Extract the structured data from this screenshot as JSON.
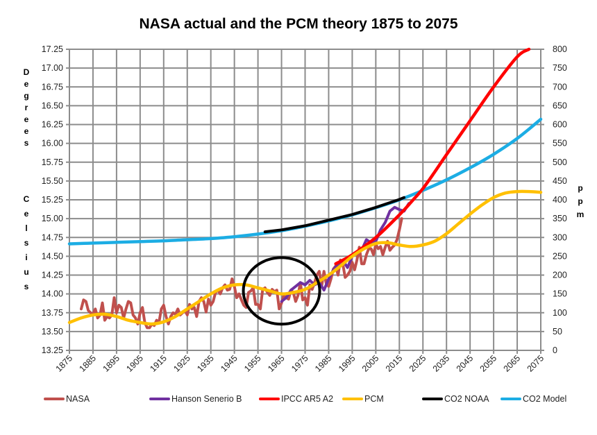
{
  "chart_data": {
    "type": "line",
    "title": "NASA actual and the PCM theory 1875 to 2075",
    "xlabel": "",
    "ylabel_left": "Degrees Celsius",
    "ylabel_right": "ppm",
    "xlim": [
      1875,
      2075
    ],
    "ylim_left": [
      13.25,
      17.25
    ],
    "ylim_right": [
      0,
      800
    ],
    "grid": true,
    "x_ticks": [
      "1875",
      "1885",
      "1895",
      "1905",
      "1915",
      "1925",
      "1935",
      "1945",
      "1955",
      "1965",
      "1975",
      "1985",
      "1995",
      "2005",
      "2015",
      "2025",
      "2035",
      "2045",
      "2055",
      "2065",
      "2075"
    ],
    "y_ticks_left": [
      "13.25",
      "13.50",
      "13.75",
      "14.00",
      "14.25",
      "14.50",
      "14.75",
      "15.00",
      "15.25",
      "15.50",
      "15.75",
      "16.00",
      "16.25",
      "16.50",
      "16.75",
      "17.00",
      "17.25"
    ],
    "y_ticks_right": [
      "0",
      "50",
      "100",
      "150",
      "200",
      "250",
      "300",
      "350",
      "400",
      "450",
      "500",
      "550",
      "600",
      "650",
      "700",
      "750",
      "800"
    ],
    "legend_position": "bottom",
    "annotation": {
      "type": "ellipse",
      "center_x": 1965,
      "center_y": 14.04,
      "label": ""
    },
    "series": [
      {
        "name": "NASA",
        "axis": "left",
        "color": "#c0504d",
        "x": [
          1880,
          1881,
          1882,
          1883,
          1884,
          1885,
          1886,
          1887,
          1888,
          1889,
          1890,
          1891,
          1892,
          1893,
          1894,
          1895,
          1896,
          1897,
          1898,
          1899,
          1900,
          1901,
          1902,
          1903,
          1904,
          1905,
          1906,
          1907,
          1908,
          1909,
          1910,
          1911,
          1912,
          1913,
          1914,
          1915,
          1916,
          1917,
          1918,
          1919,
          1920,
          1921,
          1922,
          1923,
          1924,
          1925,
          1926,
          1927,
          1928,
          1929,
          1930,
          1931,
          1932,
          1933,
          1934,
          1935,
          1936,
          1937,
          1938,
          1939,
          1940,
          1941,
          1942,
          1943,
          1944,
          1945,
          1946,
          1947,
          1948,
          1949,
          1950,
          1951,
          1952,
          1953,
          1954,
          1955,
          1956,
          1957,
          1958,
          1959,
          1960,
          1961,
          1962,
          1963,
          1964,
          1965,
          1966,
          1967,
          1968,
          1969,
          1970,
          1971,
          1972,
          1973,
          1974,
          1975,
          1976,
          1977,
          1978,
          1979,
          1980,
          1981,
          1982,
          1983,
          1984,
          1985,
          1986,
          1987,
          1988,
          1989,
          1990,
          1991,
          1992,
          1993,
          1994,
          1995,
          1996,
          1997,
          1998,
          1999,
          2000,
          2001,
          2002,
          2003,
          2004,
          2005,
          2006,
          2007,
          2008,
          2009,
          2010,
          2011,
          2012,
          2013,
          2014,
          2015,
          2016
        ],
        "values": [
          13.8,
          13.92,
          13.9,
          13.78,
          13.75,
          13.73,
          13.8,
          13.68,
          13.72,
          13.88,
          13.65,
          13.7,
          13.68,
          13.72,
          13.95,
          13.75,
          13.85,
          13.82,
          13.68,
          13.8,
          13.9,
          13.88,
          13.72,
          13.68,
          13.6,
          13.75,
          13.82,
          13.62,
          13.55,
          13.55,
          13.6,
          13.58,
          13.65,
          13.62,
          13.8,
          13.85,
          13.7,
          13.6,
          13.7,
          13.75,
          13.73,
          13.8,
          13.72,
          13.75,
          13.78,
          13.72,
          13.86,
          13.8,
          13.82,
          13.7,
          13.9,
          13.95,
          13.9,
          13.76,
          13.93,
          13.85,
          13.9,
          14.02,
          14.05,
          14.0,
          14.08,
          14.12,
          14.05,
          14.06,
          14.2,
          14.1,
          13.95,
          14.0,
          13.92,
          13.85,
          13.82,
          14.02,
          14.04,
          14.08,
          13.86,
          13.86,
          13.8,
          14.06,
          14.08,
          14.02,
          13.98,
          14.06,
          14.03,
          14.05,
          13.8,
          13.88,
          13.98,
          13.95,
          13.93,
          14.05,
          14.02,
          13.9,
          13.98,
          14.15,
          13.92,
          13.95,
          13.85,
          14.12,
          14.06,
          14.15,
          14.25,
          14.3,
          14.1,
          14.3,
          14.13,
          14.1,
          14.2,
          14.33,
          14.37,
          14.25,
          14.45,
          14.4,
          14.22,
          14.25,
          14.3,
          14.42,
          14.32,
          14.45,
          14.62,
          14.4,
          14.4,
          14.52,
          14.6,
          14.6,
          14.52,
          14.66,
          14.6,
          14.63,
          14.52,
          14.62,
          14.7,
          14.58,
          14.62,
          14.65,
          14.72,
          14.85,
          15.0
        ]
      },
      {
        "name": "Hanson Senerio B",
        "axis": "left",
        "color": "#7030a0",
        "x": [
          1965,
          1967,
          1969,
          1971,
          1973,
          1975,
          1977,
          1979,
          1981,
          1983,
          1985,
          1987,
          1989,
          1991,
          1993,
          1995,
          1997,
          1999,
          2001,
          2003,
          2005,
          2007,
          2009,
          2011,
          2013,
          2015,
          2017,
          2019
        ],
        "values": [
          13.9,
          13.95,
          14.05,
          14.1,
          14.15,
          14.12,
          14.18,
          14.12,
          14.15,
          14.05,
          14.2,
          14.32,
          14.4,
          14.45,
          14.35,
          14.5,
          14.55,
          14.58,
          14.72,
          14.68,
          14.7,
          14.85,
          14.95,
          15.1,
          15.15,
          15.12,
          15.1,
          15.2
        ]
      },
      {
        "name": "IPCC AR5 A2",
        "axis": "left",
        "color": "#ff0000",
        "x": [
          1988,
          1995,
          2005,
          2015,
          2020,
          2025,
          2030,
          2035,
          2045,
          2055,
          2065,
          2070
        ],
        "values": [
          14.4,
          14.52,
          14.75,
          15.05,
          15.22,
          15.4,
          15.62,
          15.85,
          16.3,
          16.75,
          17.15,
          17.25
        ]
      },
      {
        "name": "PCM",
        "axis": "left",
        "color": "#ffc000",
        "x": [
          1875,
          1880,
          1885,
          1890,
          1895,
          1900,
          1905,
          1910,
          1915,
          1920,
          1925,
          1930,
          1935,
          1940,
          1945,
          1950,
          1955,
          1960,
          1965,
          1970,
          1975,
          1980,
          1985,
          1990,
          1995,
          2000,
          2005,
          2010,
          2015,
          2020,
          2025,
          2030,
          2035,
          2040,
          2045,
          2050,
          2055,
          2060,
          2065,
          2070,
          2075
        ],
        "values": [
          13.62,
          13.68,
          13.72,
          13.73,
          13.7,
          13.65,
          13.62,
          13.6,
          13.63,
          13.7,
          13.8,
          13.9,
          14.0,
          14.08,
          14.12,
          14.12,
          14.08,
          14.04,
          14.0,
          14.02,
          14.06,
          14.15,
          14.25,
          14.37,
          14.5,
          14.6,
          14.67,
          14.68,
          14.65,
          14.63,
          14.65,
          14.7,
          14.8,
          14.93,
          15.06,
          15.18,
          15.28,
          15.34,
          15.36,
          15.36,
          15.35
        ]
      },
      {
        "name": "CO2 NOAA",
        "axis": "right",
        "color": "#000000",
        "x": [
          1958,
          1965,
          1975,
          1985,
          1995,
          2005,
          2015,
          2017
        ],
        "values": [
          315,
          320,
          331,
          346,
          361,
          380,
          401,
          406
        ]
      },
      {
        "name": "CO2 Model",
        "axis": "right",
        "color": "#1cade4",
        "x": [
          1875,
          1885,
          1895,
          1905,
          1915,
          1925,
          1935,
          1945,
          1955,
          1965,
          1975,
          1985,
          1995,
          2005,
          2015,
          2025,
          2035,
          2045,
          2055,
          2065,
          2075
        ],
        "values": [
          283,
          285,
          287,
          289,
          291,
          294,
          297,
          302,
          309,
          318,
          330,
          344,
          360,
          379,
          400,
          425,
          453,
          485,
          521,
          563,
          614
        ]
      }
    ]
  }
}
